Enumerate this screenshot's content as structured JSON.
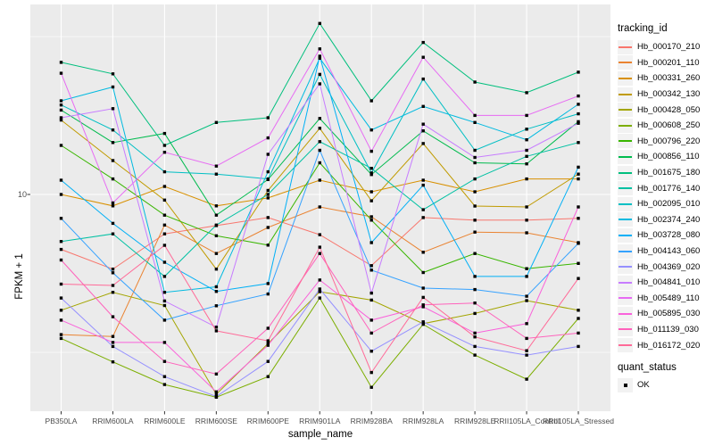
{
  "figure": {
    "panel_bg": "#EBEBEB",
    "grid_color": "#FFFFFF",
    "tick_color": "#333333",
    "tick_label_color": "#4D4D4D",
    "point_color": "#000000"
  },
  "chart_data": {
    "type": "line",
    "title": "",
    "xlabel": "sample_name",
    "ylabel": "FPKM + 1",
    "y_scale": "log10",
    "y_tick_labels": [
      "10"
    ],
    "y_major_gridlines": [
      10
    ],
    "y_minor_gridlines": [
      31.62,
      3.162
    ],
    "ylim": [
      2.0,
      38
    ],
    "grid": true,
    "legend_position": "right",
    "point_marker": "filled-square",
    "categories": [
      "PB350LA",
      "RRIM600LA",
      "RRIM600LE",
      "RRIM600SE",
      "RRIM600PE",
      "RRIM901LA",
      "RRIM928BA",
      "RRIM928LA",
      "RRIM928LE",
      "RRII105LA_Control",
      "RRII105LA_Stressed"
    ],
    "series": [
      {
        "name": "Hb_000170_210",
        "color": "#F8766D",
        "values": [
          6.7,
          5.8,
          7.5,
          7.97,
          8.45,
          7.46,
          5.95,
          8.45,
          8.29,
          8.29,
          8.4
        ]
      },
      {
        "name": "Hb_000201_110",
        "color": "#EA8331",
        "values": [
          3.6,
          3.55,
          8.0,
          6.5,
          7.86,
          9.13,
          8.5,
          6.56,
          7.6,
          7.56,
          7.04
        ]
      },
      {
        "name": "Hb_000331_260",
        "color": "#D89000",
        "values": [
          10.0,
          9.2,
          10.6,
          9.2,
          9.75,
          11.1,
          10.2,
          11.1,
          10.2,
          11.2,
          11.2
        ]
      },
      {
        "name": "Hb_000342_130",
        "color": "#C09B00",
        "values": [
          17.2,
          12.8,
          9.6,
          5.8,
          10.3,
          16.2,
          9.55,
          14.5,
          9.19,
          9.13,
          11.6
        ]
      },
      {
        "name": "Hb_000428_050",
        "color": "#A3A500",
        "values": [
          4.3,
          4.9,
          4.45,
          2.33,
          3.37,
          4.92,
          4.63,
          3.9,
          4.2,
          4.61,
          4.3
        ]
      },
      {
        "name": "Hb_000608_250",
        "color": "#7CAE00",
        "values": [
          3.5,
          2.95,
          2.5,
          2.28,
          2.65,
          4.7,
          2.45,
          3.88,
          3.1,
          2.6,
          4.05
        ]
      },
      {
        "name": "Hb_000796_220",
        "color": "#39B600",
        "values": [
          14.3,
          11.2,
          8.6,
          7.4,
          6.91,
          12.6,
          8.29,
          5.66,
          6.5,
          5.82,
          6.05
        ]
      },
      {
        "name": "Hb_000856_110",
        "color": "#00BB4E",
        "values": [
          18.5,
          14.6,
          15.6,
          8.6,
          11.15,
          17.4,
          11.56,
          15.9,
          12.6,
          12.5,
          17.0
        ]
      },
      {
        "name": "Hb_001675_180",
        "color": "#00BF7D",
        "values": [
          26.2,
          24.1,
          14.3,
          16.9,
          17.5,
          34.8,
          19.8,
          30.3,
          22.7,
          21.0,
          24.4
        ]
      },
      {
        "name": "Hb_001776_140",
        "color": "#00C1A3",
        "values": [
          7.1,
          7.5,
          5.5,
          8.0,
          10.0,
          14.7,
          12.1,
          8.95,
          11.2,
          13.2,
          14.6
        ]
      },
      {
        "name": "Hb_002095_010",
        "color": "#00BFC4",
        "values": [
          19.2,
          16.0,
          11.8,
          11.6,
          11.2,
          24.0,
          11.7,
          23.2,
          13.8,
          16.1,
          18.0
        ]
      },
      {
        "name": "Hb_002374_240",
        "color": "#00BAE0",
        "values": [
          19.8,
          21.9,
          4.9,
          5.1,
          11.8,
          27.0,
          16.0,
          19.0,
          16.9,
          14.9,
          19.3
        ]
      },
      {
        "name": "Hb_003728_080",
        "color": "#00B0F6",
        "values": [
          11.1,
          8.1,
          6.1,
          4.93,
          5.22,
          27.4,
          7.04,
          10.7,
          5.5,
          5.5,
          12.2
        ]
      },
      {
        "name": "Hb_004143_060",
        "color": "#35A2FF",
        "values": [
          8.4,
          5.65,
          4.0,
          4.44,
          4.84,
          13.8,
          5.76,
          5.05,
          5.0,
          4.76,
          7.0
        ]
      },
      {
        "name": "Hb_004369_020",
        "color": "#9590FF",
        "values": [
          4.7,
          3.3,
          2.65,
          2.29,
          2.96,
          5.02,
          3.19,
          3.95,
          3.3,
          3.1,
          3.3
        ]
      },
      {
        "name": "Hb_004841_010",
        "color": "#C77CFF",
        "values": [
          17.5,
          18.7,
          4.6,
          3.8,
          13.4,
          22.4,
          4.87,
          16.7,
          13.1,
          13.8,
          16.8
        ]
      },
      {
        "name": "Hb_005489_110",
        "color": "#E76BF3",
        "values": [
          24.2,
          9.4,
          13.6,
          12.3,
          15.1,
          28.9,
          13.7,
          27.2,
          17.8,
          17.8,
          20.5
        ]
      },
      {
        "name": "Hb_005895_030",
        "color": "#FA62DB",
        "values": [
          4.0,
          3.4,
          3.4,
          2.37,
          3.33,
          5.36,
          4.0,
          4.41,
          3.64,
          3.9,
          9.13
        ]
      },
      {
        "name": "Hb_011139_030",
        "color": "#FF62BC",
        "values": [
          6.2,
          4.1,
          2.96,
          2.7,
          3.77,
          6.5,
          3.64,
          4.47,
          4.53,
          3.5,
          3.64
        ]
      },
      {
        "name": "Hb_016172_020",
        "color": "#FF6A98",
        "values": [
          5.2,
          5.15,
          6.9,
          3.7,
          3.44,
          6.81,
          2.73,
          4.72,
          3.54,
          3.2,
          5.42
        ]
      }
    ]
  },
  "legends": {
    "tracking": {
      "title": "tracking_id"
    },
    "quant": {
      "title": "quant_status",
      "items": [
        {
          "label": "OK"
        }
      ]
    }
  }
}
